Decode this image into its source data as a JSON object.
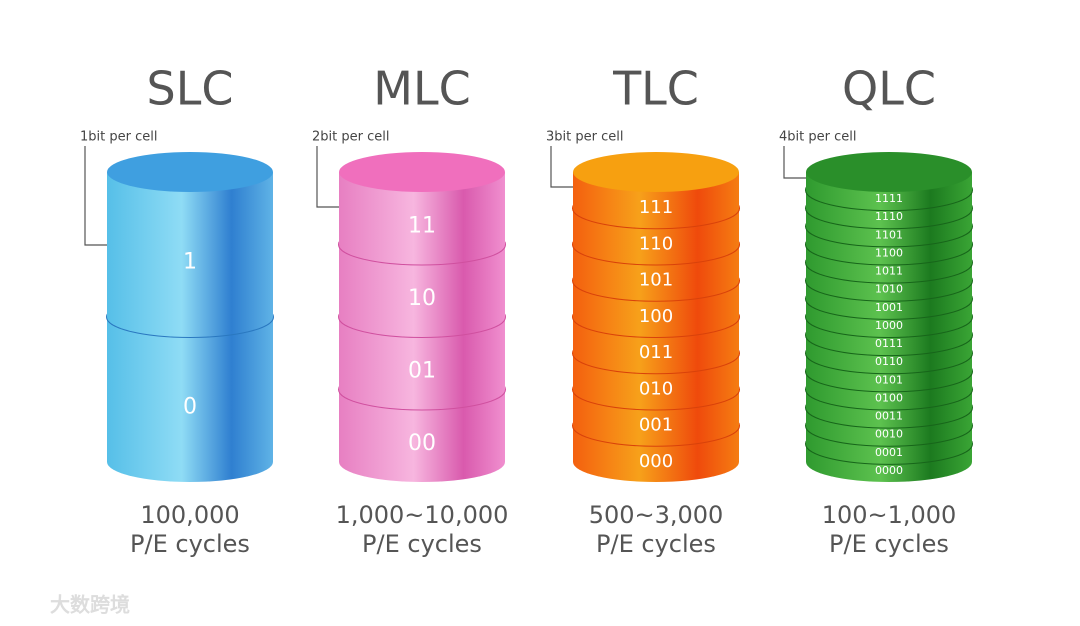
{
  "columns": [
    {
      "title": "SLC",
      "subtitle": "1bit per cell",
      "levels": [
        "1",
        "0"
      ],
      "endurance": "100,000",
      "cycles": "P/E cycles"
    },
    {
      "title": "MLC",
      "subtitle": "2bit per cell",
      "levels": [
        "11",
        "10",
        "01",
        "00"
      ],
      "endurance": "1,000~10,000",
      "cycles": "P/E cycles"
    },
    {
      "title": "TLC",
      "subtitle": "3bit per cell",
      "levels": [
        "111",
        "110",
        "101",
        "100",
        "011",
        "010",
        "001",
        "000"
      ],
      "endurance": "500~3,000",
      "cycles": "P/E cycles"
    },
    {
      "title": "QLC",
      "subtitle": "4bit per cell",
      "levels": [
        "1111",
        "1110",
        "1101",
        "1100",
        "1011",
        "1010",
        "1001",
        "1000",
        "0111",
        "0110",
        "0101",
        "0100",
        "0011",
        "0010",
        "0001",
        "0000"
      ],
      "endurance": "100~1,000",
      "cycles": "P/E cycles"
    }
  ],
  "watermark": "大数跨境"
}
